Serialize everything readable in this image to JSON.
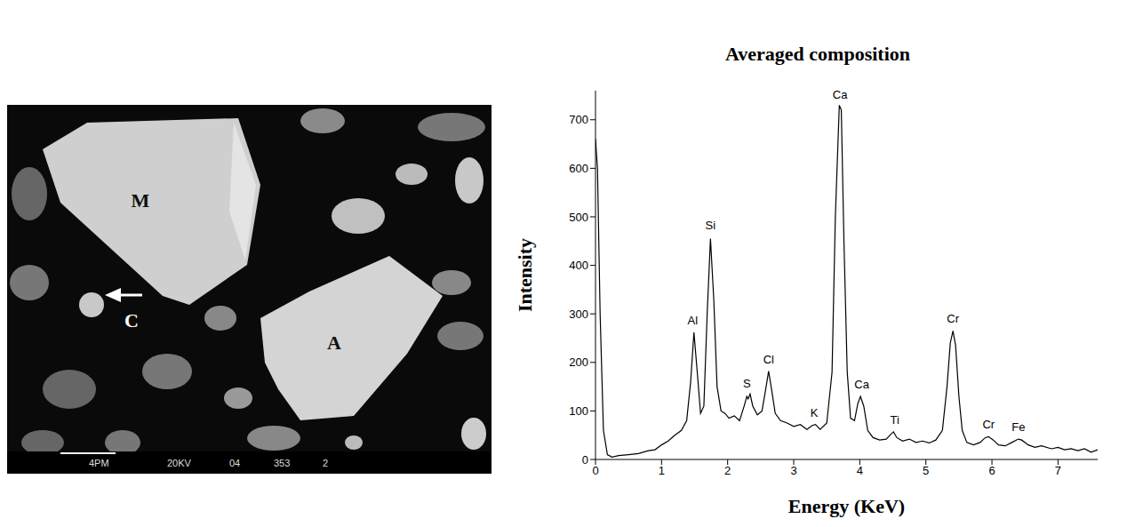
{
  "chart_data": {
    "type": "line",
    "title": "Averaged composition",
    "x_label": "Energy (KeV)",
    "y_label": "Intensity",
    "xlim": [
      0,
      7.6
    ],
    "xticks": [
      0,
      1,
      2,
      3,
      4,
      5,
      6,
      7
    ],
    "ylim": [
      0,
      760
    ],
    "yticks": [
      0,
      100,
      200,
      300,
      400,
      500,
      600,
      700
    ],
    "grid": false,
    "color": "#000000",
    "x": [
      0,
      0.03,
      0.07,
      0.12,
      0.18,
      0.25,
      0.35,
      0.5,
      0.65,
      0.8,
      0.9,
      1.0,
      1.1,
      1.2,
      1.3,
      1.38,
      1.44,
      1.49,
      1.54,
      1.59,
      1.64,
      1.69,
      1.74,
      1.79,
      1.84,
      1.9,
      1.96,
      2.02,
      2.1,
      2.18,
      2.25,
      2.29,
      2.31,
      2.34,
      2.38,
      2.45,
      2.52,
      2.57,
      2.62,
      2.67,
      2.72,
      2.8,
      2.9,
      3.0,
      3.1,
      3.2,
      3.28,
      3.33,
      3.4,
      3.5,
      3.58,
      3.63,
      3.69,
      3.72,
      3.76,
      3.81,
      3.86,
      3.92,
      3.97,
      4.01,
      4.06,
      4.12,
      4.2,
      4.3,
      4.4,
      4.47,
      4.51,
      4.56,
      4.65,
      4.75,
      4.85,
      4.95,
      5.05,
      5.15,
      5.25,
      5.32,
      5.37,
      5.41,
      5.45,
      5.5,
      5.55,
      5.62,
      5.72,
      5.82,
      5.9,
      5.95,
      6.02,
      6.1,
      6.2,
      6.3,
      6.4,
      6.45,
      6.55,
      6.65,
      6.75,
      6.9,
      7.0,
      7.1,
      7.2,
      7.3,
      7.4,
      7.5,
      7.6
    ],
    "values": [
      660,
      600,
      300,
      60,
      10,
      5,
      8,
      10,
      12,
      18,
      20,
      30,
      38,
      50,
      60,
      80,
      160,
      262,
      180,
      95,
      110,
      300,
      455,
      330,
      150,
      100,
      95,
      85,
      90,
      80,
      110,
      130,
      125,
      135,
      110,
      92,
      100,
      140,
      182,
      140,
      95,
      80,
      75,
      68,
      72,
      62,
      70,
      72,
      62,
      75,
      180,
      500,
      730,
      720,
      450,
      180,
      85,
      80,
      115,
      130,
      110,
      60,
      45,
      40,
      42,
      52,
      57,
      45,
      38,
      42,
      35,
      38,
      34,
      40,
      60,
      150,
      240,
      265,
      235,
      130,
      60,
      35,
      30,
      35,
      45,
      47,
      40,
      30,
      28,
      35,
      42,
      40,
      30,
      25,
      28,
      22,
      25,
      20,
      22,
      18,
      22,
      15,
      20
    ],
    "annotations": [
      {
        "text": "Al",
        "x": 1.47,
        "y": 275
      },
      {
        "text": "Si",
        "x": 1.74,
        "y": 470
      },
      {
        "text": "S",
        "x": 2.29,
        "y": 145
      },
      {
        "text": "Cl",
        "x": 2.62,
        "y": 195
      },
      {
        "text": "K",
        "x": 3.31,
        "y": 85
      },
      {
        "text": "Ca",
        "x": 3.7,
        "y": 740
      },
      {
        "text": "Ca",
        "x": 4.03,
        "y": 142
      },
      {
        "text": "Ti",
        "x": 4.53,
        "y": 70
      },
      {
        "text": "Cr",
        "x": 5.41,
        "y": 278
      },
      {
        "text": "Cr",
        "x": 5.95,
        "y": 60
      },
      {
        "text": "Fe",
        "x": 6.4,
        "y": 55
      }
    ]
  },
  "micrograph": {
    "labels": [
      "M",
      "A",
      "C"
    ],
    "footer": [
      "4PM",
      "20KV",
      "04",
      "353",
      "2"
    ]
  }
}
